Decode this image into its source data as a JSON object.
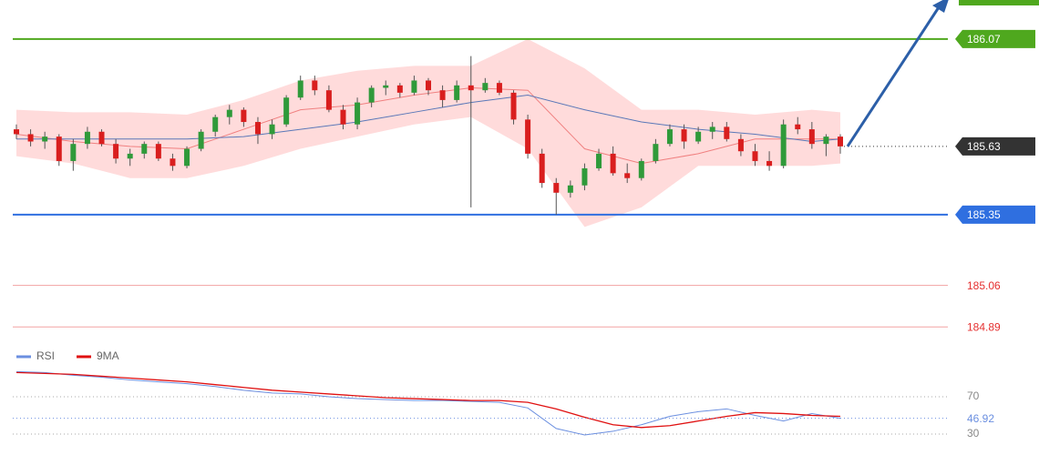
{
  "chart_data": [
    {
      "type": "candlestick",
      "ylim": [
        184.82,
        186.23
      ],
      "up_color": "#2f9a3a",
      "down_color": "#d91e1e",
      "open": [
        185.7,
        185.68,
        185.65,
        185.67,
        185.57,
        185.64,
        185.69,
        185.64,
        185.58,
        185.6,
        185.64,
        185.58,
        185.55,
        185.62,
        185.69,
        185.75,
        185.78,
        185.73,
        185.68,
        185.72,
        185.83,
        185.9,
        185.86,
        185.78,
        185.72,
        185.81,
        185.87,
        185.88,
        185.85,
        185.9,
        185.86,
        185.82,
        185.88,
        185.86,
        185.89,
        185.85,
        185.74,
        185.6,
        185.48,
        185.44,
        185.47,
        185.54,
        185.6,
        185.52,
        185.5,
        185.57,
        185.64,
        185.7,
        185.65,
        185.69,
        185.71,
        185.66,
        185.61,
        185.57,
        185.55,
        185.72,
        185.7,
        185.64,
        185.67
      ],
      "high": [
        185.72,
        185.7,
        185.69,
        185.68,
        185.66,
        185.71,
        185.7,
        185.66,
        185.62,
        185.65,
        185.65,
        185.6,
        185.63,
        185.7,
        185.76,
        185.8,
        185.79,
        185.75,
        185.74,
        185.84,
        185.92,
        185.92,
        185.88,
        185.8,
        185.83,
        185.88,
        185.9,
        185.89,
        185.92,
        185.91,
        185.88,
        185.9,
        186.0,
        185.91,
        185.9,
        185.86,
        185.76,
        185.62,
        185.5,
        185.49,
        185.56,
        185.62,
        185.63,
        185.56,
        185.58,
        185.66,
        185.72,
        185.72,
        185.71,
        185.73,
        185.73,
        185.68,
        185.64,
        185.61,
        185.74,
        185.75,
        185.73,
        185.68,
        185.68
      ],
      "low": [
        185.66,
        185.63,
        185.62,
        185.55,
        185.53,
        185.62,
        185.63,
        185.56,
        185.55,
        185.58,
        185.57,
        185.53,
        185.54,
        185.61,
        185.67,
        185.72,
        185.71,
        185.64,
        185.66,
        185.71,
        185.82,
        185.84,
        185.77,
        185.7,
        185.7,
        185.79,
        185.84,
        185.83,
        185.84,
        185.84,
        185.79,
        185.81,
        185.38,
        185.85,
        185.84,
        185.72,
        185.58,
        185.46,
        185.35,
        185.42,
        185.45,
        185.53,
        185.51,
        185.48,
        185.49,
        185.56,
        185.63,
        185.62,
        185.64,
        185.66,
        185.65,
        185.59,
        185.55,
        185.53,
        185.54,
        185.68,
        185.62,
        185.59,
        185.6
      ],
      "close": [
        185.68,
        185.65,
        185.67,
        185.57,
        185.64,
        185.69,
        185.64,
        185.58,
        185.6,
        185.64,
        185.58,
        185.55,
        185.62,
        185.69,
        185.75,
        185.78,
        185.73,
        185.68,
        185.72,
        185.83,
        185.9,
        185.86,
        185.78,
        185.72,
        185.81,
        185.87,
        185.88,
        185.85,
        185.9,
        185.86,
        185.82,
        185.88,
        185.86,
        185.89,
        185.85,
        185.74,
        185.6,
        185.48,
        185.44,
        185.47,
        185.54,
        185.6,
        185.52,
        185.5,
        185.57,
        185.64,
        185.7,
        185.65,
        185.69,
        185.71,
        185.66,
        185.61,
        185.57,
        185.55,
        185.72,
        185.7,
        185.64,
        185.67,
        185.63
      ],
      "band": {
        "color": "#ffcccc",
        "x": [
          0,
          4,
          8,
          12,
          16,
          20,
          24,
          28,
          32,
          36,
          40,
          44,
          48,
          52,
          56,
          58
        ],
        "upper": [
          185.78,
          185.77,
          185.77,
          185.76,
          185.82,
          185.9,
          185.94,
          185.96,
          185.96,
          186.07,
          185.95,
          185.78,
          185.78,
          185.76,
          185.78,
          185.77
        ],
        "lower": [
          185.59,
          185.56,
          185.5,
          185.5,
          185.55,
          185.62,
          185.67,
          185.72,
          185.75,
          185.62,
          185.3,
          185.38,
          185.55,
          185.55,
          185.55,
          185.56
        ]
      },
      "overlays": [
        {
          "color": "#f08080",
          "x": [
            0,
            4,
            8,
            12,
            16,
            20,
            24,
            28,
            32,
            36,
            40,
            44,
            48,
            52,
            56,
            58
          ],
          "values": [
            185.68,
            185.65,
            185.63,
            185.62,
            185.7,
            185.78,
            185.8,
            185.84,
            185.87,
            185.86,
            185.62,
            185.56,
            185.6,
            185.66,
            185.66,
            185.66
          ]
        },
        {
          "color": "#5a78b8",
          "x": [
            0,
            4,
            8,
            12,
            16,
            20,
            24,
            28,
            32,
            36,
            40,
            44,
            48,
            52,
            56,
            58
          ],
          "values": [
            185.66,
            185.66,
            185.66,
            185.66,
            185.67,
            185.7,
            185.73,
            185.77,
            185.81,
            185.84,
            185.78,
            185.73,
            185.7,
            185.68,
            185.65,
            185.66
          ]
        }
      ],
      "levels": [
        {
          "value": 186.07,
          "color": "#4fa81e",
          "label_box": true
        },
        {
          "value": 185.35,
          "color": "#2f6fe0",
          "label_box": true
        },
        {
          "value": 185.06,
          "color": "#e53030",
          "label_box": false
        },
        {
          "value": 184.89,
          "color": "#e53030",
          "label_box": false
        }
      ],
      "last_color": "#333333"
    },
    {
      "type": "line",
      "ylim": [
        0,
        100
      ],
      "yticks": [
        30,
        70
      ],
      "x": [
        0,
        2,
        4,
        6,
        8,
        10,
        12,
        14,
        16,
        18,
        20,
        22,
        24,
        26,
        28,
        30,
        32,
        34,
        36,
        38,
        40,
        42,
        44,
        46,
        48,
        50,
        52,
        54,
        56,
        58
      ],
      "series": [
        {
          "name": "RSI",
          "color": "#6b8fe0",
          "values": [
            97,
            96,
            93,
            91,
            88,
            86,
            84,
            81,
            77,
            74,
            73,
            70,
            68,
            67,
            66,
            66,
            65,
            64,
            58,
            36,
            29,
            33,
            40,
            49,
            54,
            57,
            50,
            44,
            52,
            46.92
          ]
        },
        {
          "name": "9MA",
          "color": "#e01010",
          "values": [
            96,
            95,
            94,
            92,
            90,
            88,
            86,
            83,
            80,
            77,
            75,
            73,
            71,
            69,
            68,
            67,
            66,
            66,
            64,
            57,
            48,
            40,
            37,
            39,
            44,
            49,
            53,
            52,
            50,
            49
          ]
        }
      ]
    }
  ]
}
